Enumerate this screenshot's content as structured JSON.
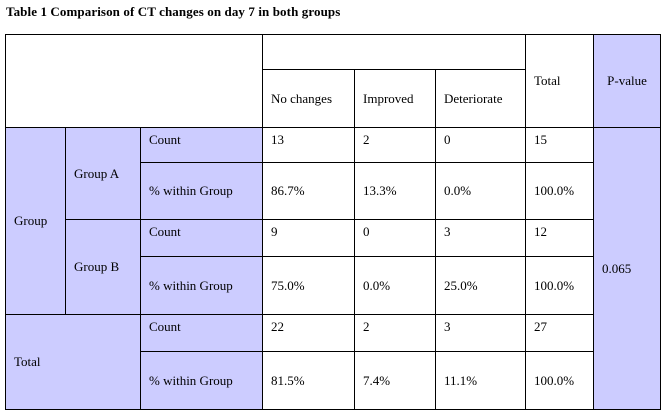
{
  "caption": "Table 1 Comparison of CT changes on day 7 in both groups",
  "header": {
    "no_changes": "No changes",
    "improved": "Improved",
    "deteriorate": "Deteriorate",
    "total": "Total",
    "p_value": "P-value"
  },
  "rows": {
    "group_label": "Group",
    "group_a": {
      "label": "Group A",
      "count_label": "Count",
      "count": [
        "13",
        "2",
        "0",
        "15"
      ],
      "pct_label": "% within Group",
      "pct": [
        "86.7%",
        "13.3%",
        "0.0%",
        "100.0%"
      ]
    },
    "group_b": {
      "label": "Group B",
      "count_label": "Count",
      "count": [
        "9",
        "0",
        "3",
        "12"
      ],
      "pct_label": "% within Group",
      "pct": [
        "75.0%",
        "0.0%",
        "25.0%",
        "100.0%"
      ]
    },
    "total": {
      "label": "Total",
      "count_label": "Count",
      "count": [
        "22",
        "2",
        "3",
        "27"
      ],
      "pct_label": "% within Group",
      "pct": [
        "81.5%",
        "7.4%",
        "11.1%",
        "100.0%"
      ]
    },
    "p_value": "0.065"
  },
  "colors": {
    "header_shade": "#ccccff",
    "border": "#000000"
  }
}
